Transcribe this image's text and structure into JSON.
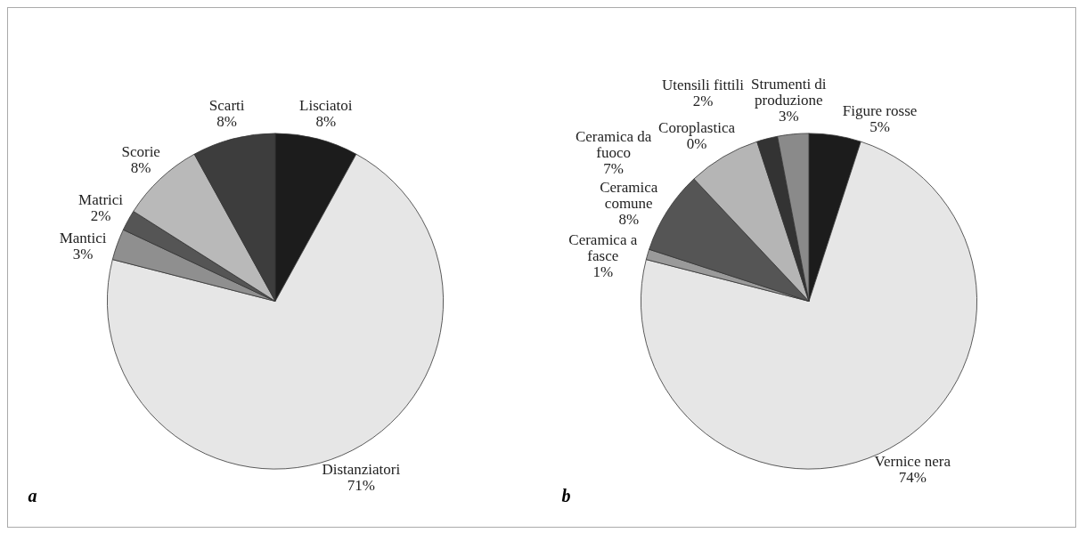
{
  "chart_data": [
    {
      "type": "pie",
      "categories": [
        "Lisciatoi",
        "Distanziatori",
        "Mantici",
        "Matrici",
        "Scorie",
        "Scarti"
      ],
      "values": [
        8,
        71,
        3,
        2,
        8,
        8
      ],
      "value_labels": [
        "8%",
        "71%",
        "3%",
        "2%",
        "8%",
        "8%"
      ],
      "colors": [
        "#1c1c1c",
        "#e6e6e6",
        "#8f8f8f",
        "#555555",
        "#b9b9b9",
        "#3d3d3d"
      ],
      "annotations": [
        "a"
      ]
    },
    {
      "type": "pie",
      "categories": [
        "Figure rosse",
        "Vernice nera",
        "Ceramica a fasce",
        "Ceramica comune",
        "Ceramica da fuoco",
        "Utensili fittili",
        "Coroplastica",
        "Strumenti di produzione"
      ],
      "values": [
        5,
        74,
        1,
        8,
        7,
        2,
        0,
        3
      ],
      "value_labels": [
        "5%",
        "74%",
        "1%",
        "8%",
        "7%",
        "2%",
        "0%",
        "3%"
      ],
      "colors": [
        "#1c1c1c",
        "#e6e6e6",
        "#9a9a9a",
        "#555555",
        "#b5b5b5",
        "#333333",
        "#666666",
        "#8a8a8a"
      ],
      "annotations": [
        "b"
      ]
    }
  ]
}
